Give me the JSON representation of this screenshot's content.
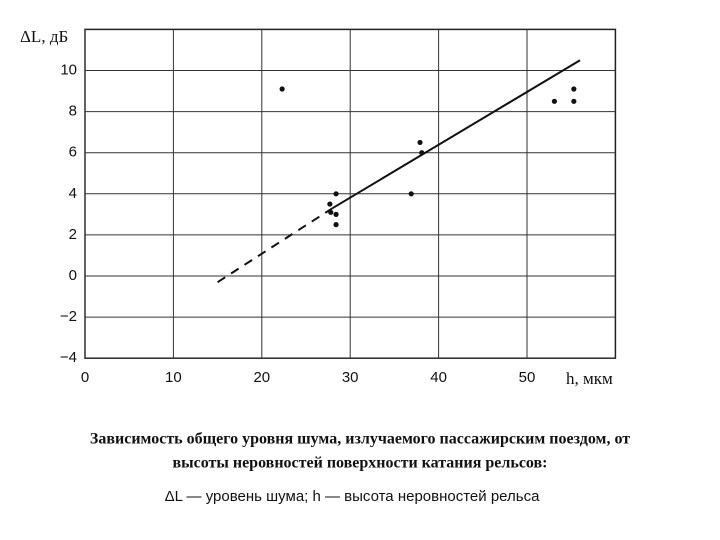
{
  "chart_data": {
    "type": "scatter",
    "y_label": "ΔL, дБ",
    "x_label": "h, мкм",
    "caption": [
      "Зависимость общего уровня шума, излучаемого пассажирским поездом, от",
      "высоты неровностей поверхности катания рельсов:"
    ],
    "legend_note": "ΔL — уровень шума; h — высота неровностей рельса",
    "xlim": [
      0,
      60
    ],
    "ylim": [
      -4,
      12
    ],
    "xticks": [
      0,
      10,
      20,
      30,
      40,
      50
    ],
    "yticks": [
      {
        "value": -4,
        "label": "−4"
      },
      {
        "value": -2,
        "label": "−2"
      },
      0,
      2,
      4,
      6,
      8,
      10
    ],
    "grid": true,
    "x": [
      22.3,
      27.7,
      27.8,
      28.4,
      28.4,
      28.4,
      36.9,
      37.9,
      38.1,
      53.1,
      55.3,
      55.3
    ],
    "values": [
      9.1,
      3.5,
      3.1,
      4.0,
      3.0,
      2.5,
      4.0,
      6.5,
      6.0,
      8.5,
      9.1,
      8.5
    ],
    "color": "#111111",
    "lines": [
      {
        "style": "dashed",
        "x": [
          15,
          28
        ],
        "values": [
          -0.3,
          3.3
        ]
      },
      {
        "style": "solid",
        "x": [
          28,
          56
        ],
        "values": [
          3.3,
          10.5
        ]
      }
    ]
  }
}
